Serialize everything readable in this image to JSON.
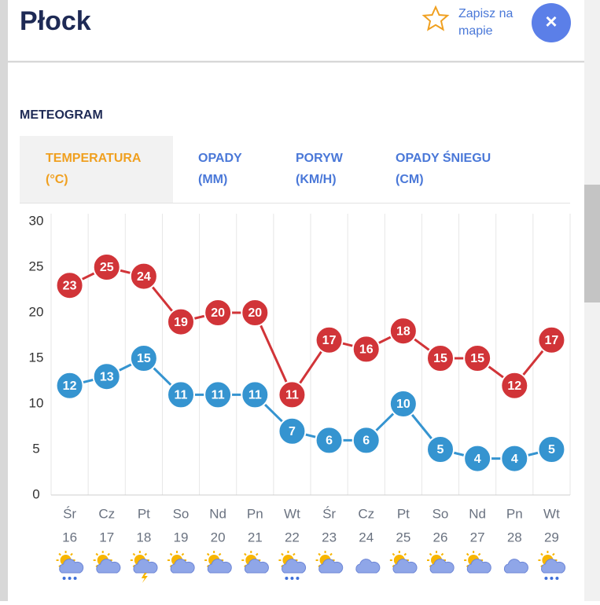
{
  "header": {
    "title": "Płock",
    "save": [
      "Zapisz na",
      "mapie"
    ],
    "close": "×"
  },
  "section_title": "METEOGRAM",
  "tabs": [
    {
      "label": "TEMPERATURA",
      "unit": "(°C)"
    },
    {
      "label": "OPADY",
      "unit": "(MM)"
    },
    {
      "label": "PORYW",
      "unit": "(KM/H)"
    },
    {
      "label": "OPADY ŚNIEGU",
      "unit": "(CM)"
    }
  ],
  "chart_data": {
    "type": "line",
    "categories": [
      "Śr",
      "Cz",
      "Pt",
      "So",
      "Nd",
      "Pn",
      "Wt",
      "Śr",
      "Cz",
      "Pt",
      "So",
      "Nd",
      "Pn",
      "Wt"
    ],
    "dates": [
      16,
      17,
      18,
      19,
      20,
      21,
      22,
      23,
      24,
      25,
      26,
      27,
      28,
      29
    ],
    "series": [
      {
        "color": "#d13438",
        "values": [
          23,
          25,
          24,
          19,
          20,
          20,
          11,
          17,
          16,
          18,
          15,
          15,
          12,
          17
        ]
      },
      {
        "color": "#3594d0",
        "values": [
          12,
          13,
          15,
          11,
          11,
          11,
          7,
          6,
          6,
          10,
          5,
          4,
          4,
          5
        ]
      }
    ],
    "ylim": [
      0,
      30
    ],
    "yticks": [
      0,
      5,
      10,
      15,
      20,
      25,
      30
    ]
  }
}
